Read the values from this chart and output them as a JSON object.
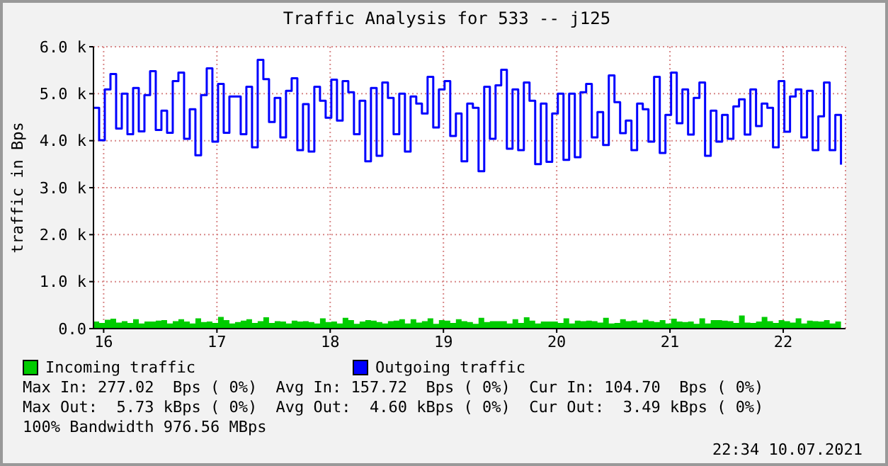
{
  "chart_data": {
    "type": "step",
    "title": "Traffic Analysis for 533 -- j125",
    "ylabel": "traffic in Bps",
    "x": [
      15.91,
      15.96,
      16.01,
      16.06,
      16.11,
      16.16,
      16.21,
      16.26,
      16.31,
      16.36,
      16.41,
      16.46,
      16.51,
      16.56,
      16.61,
      16.66,
      16.71,
      16.76,
      16.81,
      16.86,
      16.91,
      16.96,
      17.01,
      17.06,
      17.11,
      17.16,
      17.21,
      17.26,
      17.31,
      17.36,
      17.41,
      17.46,
      17.51,
      17.56,
      17.61,
      17.66,
      17.71,
      17.76,
      17.81,
      17.86,
      17.91,
      17.96,
      18.01,
      18.06,
      18.11,
      18.16,
      18.21,
      18.26,
      18.31,
      18.36,
      18.41,
      18.46,
      18.51,
      18.56,
      18.61,
      18.66,
      18.71,
      18.76,
      18.81,
      18.86,
      18.91,
      18.96,
      19.01,
      19.06,
      19.11,
      19.16,
      19.21,
      19.26,
      19.31,
      19.36,
      19.41,
      19.46,
      19.51,
      19.56,
      19.61,
      19.66,
      19.71,
      19.76,
      19.81,
      19.86,
      19.91,
      19.96,
      20.01,
      20.06,
      20.11,
      20.16,
      20.21,
      20.26,
      20.31,
      20.36,
      20.41,
      20.46,
      20.51,
      20.56,
      20.61,
      20.66,
      20.71,
      20.76,
      20.81,
      20.86,
      20.91,
      20.96,
      21.01,
      21.06,
      21.11,
      21.16,
      21.21,
      21.26,
      21.31,
      21.36,
      21.41,
      21.46,
      21.51,
      21.56,
      21.61,
      21.66,
      21.71,
      21.76,
      21.81,
      21.86,
      21.91,
      21.96,
      22.01,
      22.06,
      22.11,
      22.16,
      22.21,
      22.26,
      22.31,
      22.36,
      22.41,
      22.46,
      22.51
    ],
    "series": [
      {
        "name": "Incoming traffic",
        "type": "area",
        "color": "#00cc00",
        "values": [
          150,
          120,
          190,
          210,
          130,
          160,
          120,
          200,
          110,
          150,
          150,
          170,
          180,
          110,
          160,
          200,
          150,
          110,
          220,
          140,
          150,
          120,
          250,
          180,
          110,
          140,
          170,
          200,
          120,
          160,
          240,
          120,
          160,
          150,
          110,
          170,
          150,
          160,
          140,
          110,
          220,
          140,
          150,
          110,
          230,
          180,
          100,
          150,
          180,
          170,
          140,
          110,
          160,
          170,
          200,
          110,
          200,
          130,
          160,
          220,
          100,
          180,
          170,
          120,
          200,
          160,
          140,
          100,
          230,
          140,
          160,
          160,
          160,
          110,
          200,
          120,
          240,
          170,
          110,
          150,
          150,
          150,
          120,
          220,
          110,
          170,
          160,
          170,
          160,
          130,
          230,
          110,
          120,
          200,
          160,
          170,
          130,
          190,
          160,
          140,
          180,
          110,
          210,
          150,
          140,
          150,
          100,
          220,
          110,
          180,
          180,
          170,
          160,
          120,
          280,
          130,
          120,
          150,
          250,
          160,
          120,
          180,
          160,
          130,
          220,
          110,
          170,
          160,
          150,
          180,
          110,
          150,
          100
        ]
      },
      {
        "name": "Outgoing traffic",
        "type": "step",
        "color": "#0000ff",
        "values": [
          4700,
          4010,
          5090,
          5420,
          4260,
          5000,
          4140,
          5120,
          4200,
          4970,
          5480,
          4230,
          4640,
          4170,
          5270,
          5450,
          4040,
          4670,
          3690,
          4970,
          5540,
          3980,
          5210,
          4170,
          4940,
          4940,
          4140,
          5150,
          3860,
          5720,
          5310,
          4400,
          4910,
          4070,
          5060,
          5330,
          3800,
          4780,
          3770,
          5150,
          4850,
          4490,
          5300,
          4430,
          5270,
          5030,
          4140,
          4850,
          3560,
          5120,
          3680,
          5240,
          4910,
          4140,
          5000,
          3770,
          4940,
          4790,
          4580,
          5360,
          4280,
          5090,
          5270,
          4100,
          4580,
          3560,
          4790,
          4700,
          3350,
          5150,
          4040,
          5180,
          5510,
          3830,
          5090,
          3800,
          5240,
          4850,
          3500,
          4790,
          3550,
          4580,
          5000,
          3590,
          5000,
          3650,
          5030,
          5210,
          4070,
          4610,
          3910,
          5390,
          4820,
          4160,
          4430,
          3800,
          4790,
          4670,
          3980,
          5360,
          3740,
          4550,
          5450,
          4370,
          5090,
          4130,
          4910,
          5240,
          3680,
          4640,
          3980,
          4550,
          4040,
          4730,
          4880,
          4130,
          5090,
          4310,
          4790,
          4700,
          3860,
          5270,
          4190,
          4940,
          5090,
          4070,
          5060,
          3800,
          4520,
          5240,
          3800,
          4550,
          3490
        ]
      }
    ],
    "xlim": [
      15.91,
      22.55
    ],
    "xticks": [
      16,
      17,
      18,
      19,
      20,
      21,
      22
    ],
    "ylim": [
      0,
      6000
    ],
    "yticks": [
      {
        "value": 0,
        "label": "0.0"
      },
      {
        "value": 1000,
        "label": "1.0 k"
      },
      {
        "value": 2000,
        "label": "2.0 k"
      },
      {
        "value": 3000,
        "label": "3.0 k"
      },
      {
        "value": 4000,
        "label": "4.0 k"
      },
      {
        "value": 5000,
        "label": "5.0 k"
      },
      {
        "value": 6000,
        "label": "6.0 k"
      }
    ],
    "grid": true,
    "legend": "bottom left",
    "annotations": [
      "Max In: 277.02  Bps ( 0%)  Avg In: 157.72  Bps ( 0%)  Cur In: 104.70  Bps ( 0%)",
      "Max Out:  5.73 kBps ( 0%)  Avg Out:  4.60 kBps ( 0%)  Cur Out:  3.49 kBps ( 0%)",
      "100% Bandwidth 976.56 MBps",
      "22:34 10.07.2021"
    ]
  }
}
